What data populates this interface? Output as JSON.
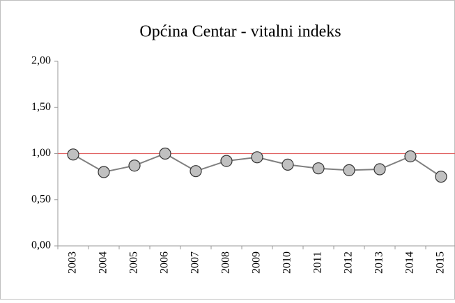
{
  "chart_data": {
    "type": "line",
    "title": "Općina Centar - vitalni indeks",
    "categories": [
      "2003",
      "2004",
      "2005",
      "2006",
      "2007",
      "2008",
      "2009",
      "2010",
      "2011",
      "2012",
      "2013",
      "2014",
      "2015"
    ],
    "series": [
      {
        "name": "vitalni indeks",
        "color": "#808080",
        "marker_color": "#c0c0c0",
        "values": [
          0.99,
          0.8,
          0.87,
          1.0,
          0.81,
          0.92,
          0.96,
          0.88,
          0.84,
          0.82,
          0.83,
          0.97,
          0.75
        ]
      }
    ],
    "reference_line": {
      "value": 1,
      "color": "#e06060"
    },
    "ylim": [
      0,
      2
    ],
    "yticks": [
      {
        "value": 0,
        "label": "0,00"
      },
      {
        "value": 0.5,
        "label": "0,50"
      },
      {
        "value": 1,
        "label": "1,00"
      },
      {
        "value": 1.5,
        "label": "1,50"
      },
      {
        "value": 2,
        "label": "2,00"
      }
    ]
  }
}
